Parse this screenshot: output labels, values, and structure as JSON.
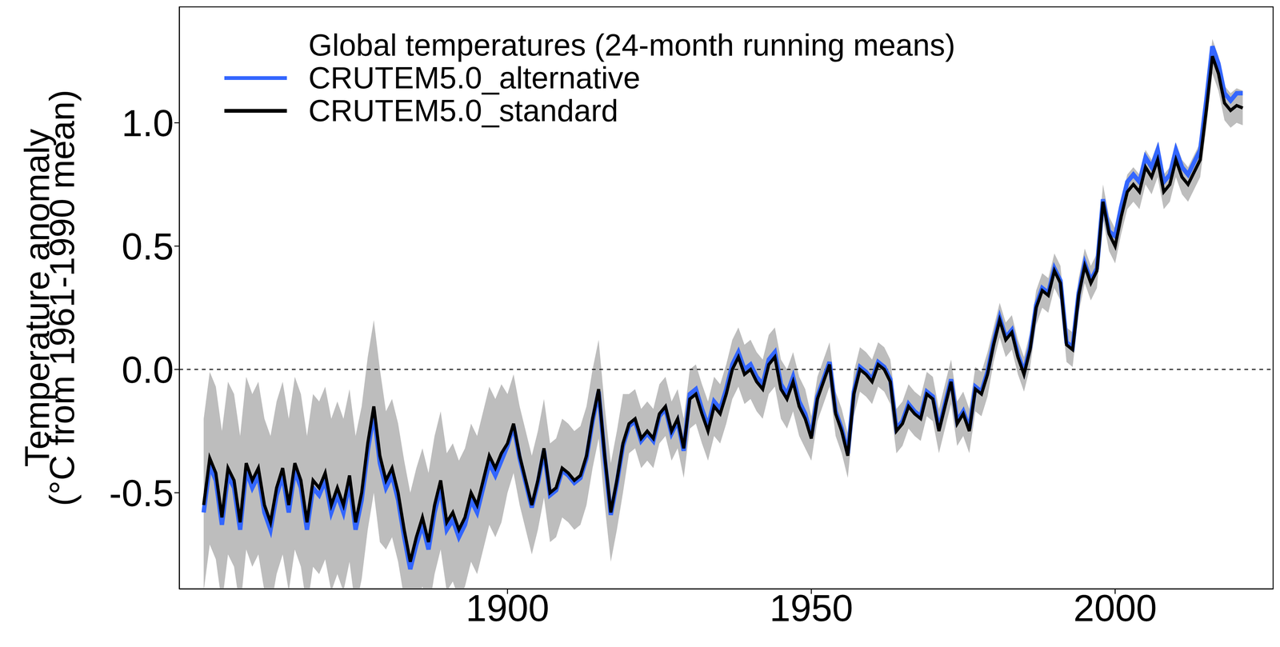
{
  "chart_data": {
    "type": "line",
    "title": "Global temperatures (24-month running means)",
    "ylabel": [
      "Temperature anomaly",
      "(°C from 1961-1990 mean)"
    ],
    "x": [
      1850,
      1851,
      1852,
      1853,
      1854,
      1855,
      1856,
      1857,
      1858,
      1859,
      1860,
      1861,
      1862,
      1863,
      1864,
      1865,
      1866,
      1867,
      1868,
      1869,
      1870,
      1871,
      1872,
      1873,
      1874,
      1875,
      1876,
      1877,
      1878,
      1879,
      1880,
      1881,
      1882,
      1883,
      1884,
      1885,
      1886,
      1887,
      1888,
      1889,
      1890,
      1891,
      1892,
      1893,
      1894,
      1895,
      1896,
      1897,
      1898,
      1899,
      1900,
      1901,
      1902,
      1903,
      1904,
      1905,
      1906,
      1907,
      1908,
      1909,
      1910,
      1911,
      1912,
      1913,
      1914,
      1915,
      1916,
      1917,
      1918,
      1919,
      1920,
      1921,
      1922,
      1923,
      1924,
      1925,
      1926,
      1927,
      1928,
      1929,
      1930,
      1931,
      1932,
      1933,
      1934,
      1935,
      1936,
      1937,
      1938,
      1939,
      1940,
      1941,
      1942,
      1943,
      1944,
      1945,
      1946,
      1947,
      1948,
      1949,
      1950,
      1951,
      1952,
      1953,
      1954,
      1955,
      1956,
      1957,
      1958,
      1959,
      1960,
      1961,
      1962,
      1963,
      1964,
      1965,
      1966,
      1967,
      1968,
      1969,
      1970,
      1971,
      1972,
      1973,
      1974,
      1975,
      1976,
      1977,
      1978,
      1979,
      1980,
      1981,
      1982,
      1983,
      1984,
      1985,
      1986,
      1987,
      1988,
      1989,
      1990,
      1991,
      1992,
      1993,
      1994,
      1995,
      1996,
      1997,
      1998,
      1999,
      2000,
      2001,
      2002,
      2003,
      2004,
      2005,
      2006,
      2007,
      2008,
      2009,
      2010,
      2011,
      2012,
      2013,
      2014,
      2015,
      2016,
      2017,
      2018,
      2019,
      2020,
      2021
    ],
    "series": [
      {
        "name": "CRUTEM5.0_alternative",
        "color": "#3366ff",
        "values": [
          -0.58,
          -0.39,
          -0.45,
          -0.63,
          -0.43,
          -0.48,
          -0.65,
          -0.41,
          -0.48,
          -0.43,
          -0.58,
          -0.65,
          -0.51,
          -0.43,
          -0.58,
          -0.41,
          -0.48,
          -0.65,
          -0.48,
          -0.51,
          -0.45,
          -0.58,
          -0.51,
          -0.58,
          -0.46,
          -0.65,
          -0.53,
          -0.33,
          -0.18,
          -0.38,
          -0.48,
          -0.43,
          -0.53,
          -0.68,
          -0.81,
          -0.71,
          -0.63,
          -0.73,
          -0.58,
          -0.48,
          -0.65,
          -0.61,
          -0.68,
          -0.63,
          -0.53,
          -0.58,
          -0.48,
          -0.38,
          -0.43,
          -0.37,
          -0.31,
          -0.23,
          -0.36,
          -0.46,
          -0.56,
          -0.46,
          -0.33,
          -0.51,
          -0.49,
          -0.41,
          -0.43,
          -0.46,
          -0.44,
          -0.36,
          -0.21,
          -0.09,
          -0.36,
          -0.59,
          -0.46,
          -0.31,
          -0.23,
          -0.21,
          -0.29,
          -0.26,
          -0.29,
          -0.19,
          -0.16,
          -0.26,
          -0.21,
          -0.33,
          -0.1,
          -0.08,
          -0.16,
          -0.23,
          -0.13,
          -0.16,
          -0.08,
          0.02,
          0.07,
          0.0,
          0.02,
          -0.03,
          -0.06,
          0.04,
          0.07,
          -0.06,
          -0.1,
          -0.03,
          -0.13,
          -0.18,
          -0.27,
          -0.11,
          -0.04,
          0.03,
          -0.17,
          -0.24,
          -0.34,
          -0.09,
          0.01,
          -0.01,
          -0.04,
          0.03,
          0.01,
          -0.04,
          -0.24,
          -0.21,
          -0.14,
          -0.17,
          -0.19,
          -0.09,
          -0.11,
          -0.24,
          -0.14,
          -0.04,
          -0.21,
          -0.17,
          -0.24,
          -0.07,
          -0.09,
          -0.01,
          0.11,
          0.21,
          0.13,
          0.16,
          0.06,
          -0.01,
          0.09,
          0.26,
          0.33,
          0.31,
          0.41,
          0.36,
          0.11,
          0.09,
          0.31,
          0.43,
          0.36,
          0.41,
          0.69,
          0.56,
          0.54,
          0.66,
          0.76,
          0.79,
          0.76,
          0.86,
          0.82,
          0.89,
          0.76,
          0.79,
          0.89,
          0.82,
          0.79,
          0.84,
          0.89,
          1.09,
          1.31,
          1.24,
          1.12,
          1.09,
          1.12,
          1.12
        ]
      },
      {
        "name": "CRUTEM5.0_standard",
        "color": "#000000",
        "values": [
          -0.55,
          -0.36,
          -0.42,
          -0.6,
          -0.4,
          -0.45,
          -0.62,
          -0.38,
          -0.45,
          -0.4,
          -0.55,
          -0.62,
          -0.48,
          -0.4,
          -0.55,
          -0.38,
          -0.45,
          -0.62,
          -0.45,
          -0.48,
          -0.42,
          -0.55,
          -0.48,
          -0.55,
          -0.43,
          -0.62,
          -0.5,
          -0.3,
          -0.15,
          -0.35,
          -0.45,
          -0.4,
          -0.5,
          -0.65,
          -0.78,
          -0.68,
          -0.6,
          -0.7,
          -0.55,
          -0.45,
          -0.62,
          -0.58,
          -0.65,
          -0.6,
          -0.5,
          -0.55,
          -0.45,
          -0.35,
          -0.4,
          -0.34,
          -0.3,
          -0.22,
          -0.35,
          -0.45,
          -0.55,
          -0.45,
          -0.32,
          -0.5,
          -0.48,
          -0.4,
          -0.42,
          -0.45,
          -0.43,
          -0.35,
          -0.2,
          -0.08,
          -0.35,
          -0.58,
          -0.45,
          -0.3,
          -0.22,
          -0.2,
          -0.28,
          -0.25,
          -0.28,
          -0.18,
          -0.15,
          -0.25,
          -0.2,
          -0.32,
          -0.12,
          -0.1,
          -0.18,
          -0.25,
          -0.15,
          -0.18,
          -0.1,
          0.0,
          0.05,
          -0.02,
          0.0,
          -0.05,
          -0.08,
          0.02,
          0.05,
          -0.08,
          -0.12,
          -0.05,
          -0.15,
          -0.2,
          -0.28,
          -0.12,
          -0.05,
          0.02,
          -0.18,
          -0.25,
          -0.35,
          -0.1,
          0.0,
          -0.02,
          -0.05,
          0.02,
          0.0,
          -0.05,
          -0.25,
          -0.22,
          -0.15,
          -0.18,
          -0.2,
          -0.1,
          -0.12,
          -0.25,
          -0.15,
          -0.05,
          -0.22,
          -0.18,
          -0.25,
          -0.08,
          -0.1,
          -0.02,
          0.1,
          0.2,
          0.12,
          0.15,
          0.05,
          -0.02,
          0.08,
          0.25,
          0.32,
          0.3,
          0.4,
          0.35,
          0.1,
          0.08,
          0.3,
          0.42,
          0.35,
          0.4,
          0.68,
          0.55,
          0.5,
          0.62,
          0.72,
          0.75,
          0.72,
          0.82,
          0.78,
          0.85,
          0.72,
          0.75,
          0.85,
          0.78,
          0.75,
          0.8,
          0.85,
          1.05,
          1.27,
          1.2,
          1.08,
          1.05,
          1.07,
          1.06
        ],
        "lower": [
          -0.9,
          -0.71,
          -0.77,
          -0.95,
          -0.75,
          -0.8,
          -0.97,
          -0.73,
          -0.8,
          -0.75,
          -0.9,
          -0.97,
          -0.83,
          -0.75,
          -0.9,
          -0.73,
          -0.8,
          -0.97,
          -0.8,
          -0.83,
          -0.77,
          -0.9,
          -0.83,
          -0.9,
          -0.78,
          -0.97,
          -0.85,
          -0.65,
          -0.5,
          -0.7,
          -0.73,
          -0.68,
          -0.78,
          -0.93,
          -1.06,
          -0.96,
          -0.88,
          -0.98,
          -0.83,
          -0.73,
          -0.9,
          -0.86,
          -0.93,
          -0.88,
          -0.78,
          -0.83,
          -0.73,
          -0.63,
          -0.68,
          -0.62,
          -0.5,
          -0.42,
          -0.55,
          -0.65,
          -0.75,
          -0.65,
          -0.52,
          -0.7,
          -0.68,
          -0.6,
          -0.62,
          -0.65,
          -0.63,
          -0.55,
          -0.4,
          -0.28,
          -0.55,
          -0.78,
          -0.65,
          -0.5,
          -0.34,
          -0.32,
          -0.4,
          -0.37,
          -0.4,
          -0.3,
          -0.27,
          -0.37,
          -0.32,
          -0.44,
          -0.24,
          -0.22,
          -0.3,
          -0.37,
          -0.27,
          -0.3,
          -0.22,
          -0.12,
          -0.07,
          -0.14,
          -0.12,
          -0.17,
          -0.2,
          -0.1,
          -0.07,
          -0.2,
          -0.24,
          -0.17,
          -0.27,
          -0.32,
          -0.37,
          -0.21,
          -0.14,
          -0.07,
          -0.27,
          -0.34,
          -0.44,
          -0.19,
          -0.09,
          -0.11,
          -0.14,
          -0.07,
          -0.09,
          -0.14,
          -0.34,
          -0.31,
          -0.24,
          -0.27,
          -0.29,
          -0.19,
          -0.21,
          -0.34,
          -0.24,
          -0.14,
          -0.31,
          -0.27,
          -0.34,
          -0.17,
          -0.19,
          -0.11,
          0.03,
          0.13,
          0.05,
          0.08,
          -0.02,
          -0.09,
          0.01,
          0.18,
          0.25,
          0.23,
          0.33,
          0.28,
          0.03,
          0.01,
          0.23,
          0.35,
          0.28,
          0.33,
          0.61,
          0.48,
          0.43,
          0.55,
          0.65,
          0.68,
          0.65,
          0.75,
          0.71,
          0.78,
          0.65,
          0.68,
          0.78,
          0.71,
          0.68,
          0.73,
          0.78,
          0.98,
          1.2,
          1.13,
          1.01,
          0.98,
          1.0,
          0.99
        ],
        "upper": [
          -0.2,
          -0.01,
          -0.07,
          -0.25,
          -0.05,
          -0.1,
          -0.27,
          -0.03,
          -0.1,
          -0.05,
          -0.2,
          -0.27,
          -0.13,
          -0.05,
          -0.2,
          -0.03,
          -0.1,
          -0.27,
          -0.1,
          -0.13,
          -0.07,
          -0.2,
          -0.13,
          -0.2,
          -0.08,
          -0.27,
          -0.15,
          0.05,
          0.2,
          0.0,
          -0.17,
          -0.12,
          -0.22,
          -0.37,
          -0.5,
          -0.4,
          -0.32,
          -0.42,
          -0.27,
          -0.17,
          -0.34,
          -0.3,
          -0.37,
          -0.32,
          -0.22,
          -0.27,
          -0.17,
          -0.07,
          -0.12,
          -0.06,
          -0.1,
          -0.02,
          -0.15,
          -0.25,
          -0.35,
          -0.25,
          -0.12,
          -0.3,
          -0.28,
          -0.2,
          -0.22,
          -0.25,
          -0.23,
          -0.15,
          0.0,
          0.12,
          -0.15,
          -0.38,
          -0.25,
          -0.1,
          -0.1,
          -0.08,
          -0.16,
          -0.13,
          -0.16,
          -0.06,
          -0.03,
          -0.13,
          -0.08,
          -0.2,
          0.0,
          0.02,
          -0.06,
          -0.13,
          -0.03,
          -0.06,
          0.02,
          0.12,
          0.17,
          0.1,
          0.12,
          0.07,
          0.04,
          0.14,
          0.17,
          0.04,
          0.0,
          0.07,
          -0.03,
          -0.08,
          -0.19,
          -0.03,
          0.04,
          0.11,
          -0.09,
          -0.16,
          -0.26,
          -0.01,
          0.09,
          0.07,
          0.04,
          0.11,
          0.09,
          0.04,
          -0.16,
          -0.13,
          -0.06,
          -0.09,
          -0.11,
          -0.01,
          -0.03,
          -0.16,
          -0.06,
          0.04,
          -0.13,
          -0.09,
          -0.16,
          0.01,
          -0.01,
          0.07,
          0.17,
          0.27,
          0.19,
          0.22,
          0.12,
          0.05,
          0.15,
          0.32,
          0.39,
          0.37,
          0.47,
          0.42,
          0.17,
          0.15,
          0.37,
          0.49,
          0.42,
          0.47,
          0.75,
          0.62,
          0.57,
          0.69,
          0.79,
          0.82,
          0.79,
          0.89,
          0.85,
          0.92,
          0.79,
          0.82,
          0.92,
          0.85,
          0.82,
          0.87,
          0.92,
          1.12,
          1.34,
          1.27,
          1.15,
          1.12,
          1.14,
          1.13
        ]
      }
    ],
    "xlim": [
      1846,
      2026
    ],
    "xticks": [
      1900,
      1950,
      2000
    ],
    "ylim": [
      -0.89,
      1.47
    ],
    "yticks": [
      -0.5,
      {
        "value": 0,
        "label": "0.0"
      },
      0.5,
      {
        "value": 1,
        "label": "1.0"
      }
    ],
    "hlines": [
      0
    ],
    "legend": "upper left"
  }
}
